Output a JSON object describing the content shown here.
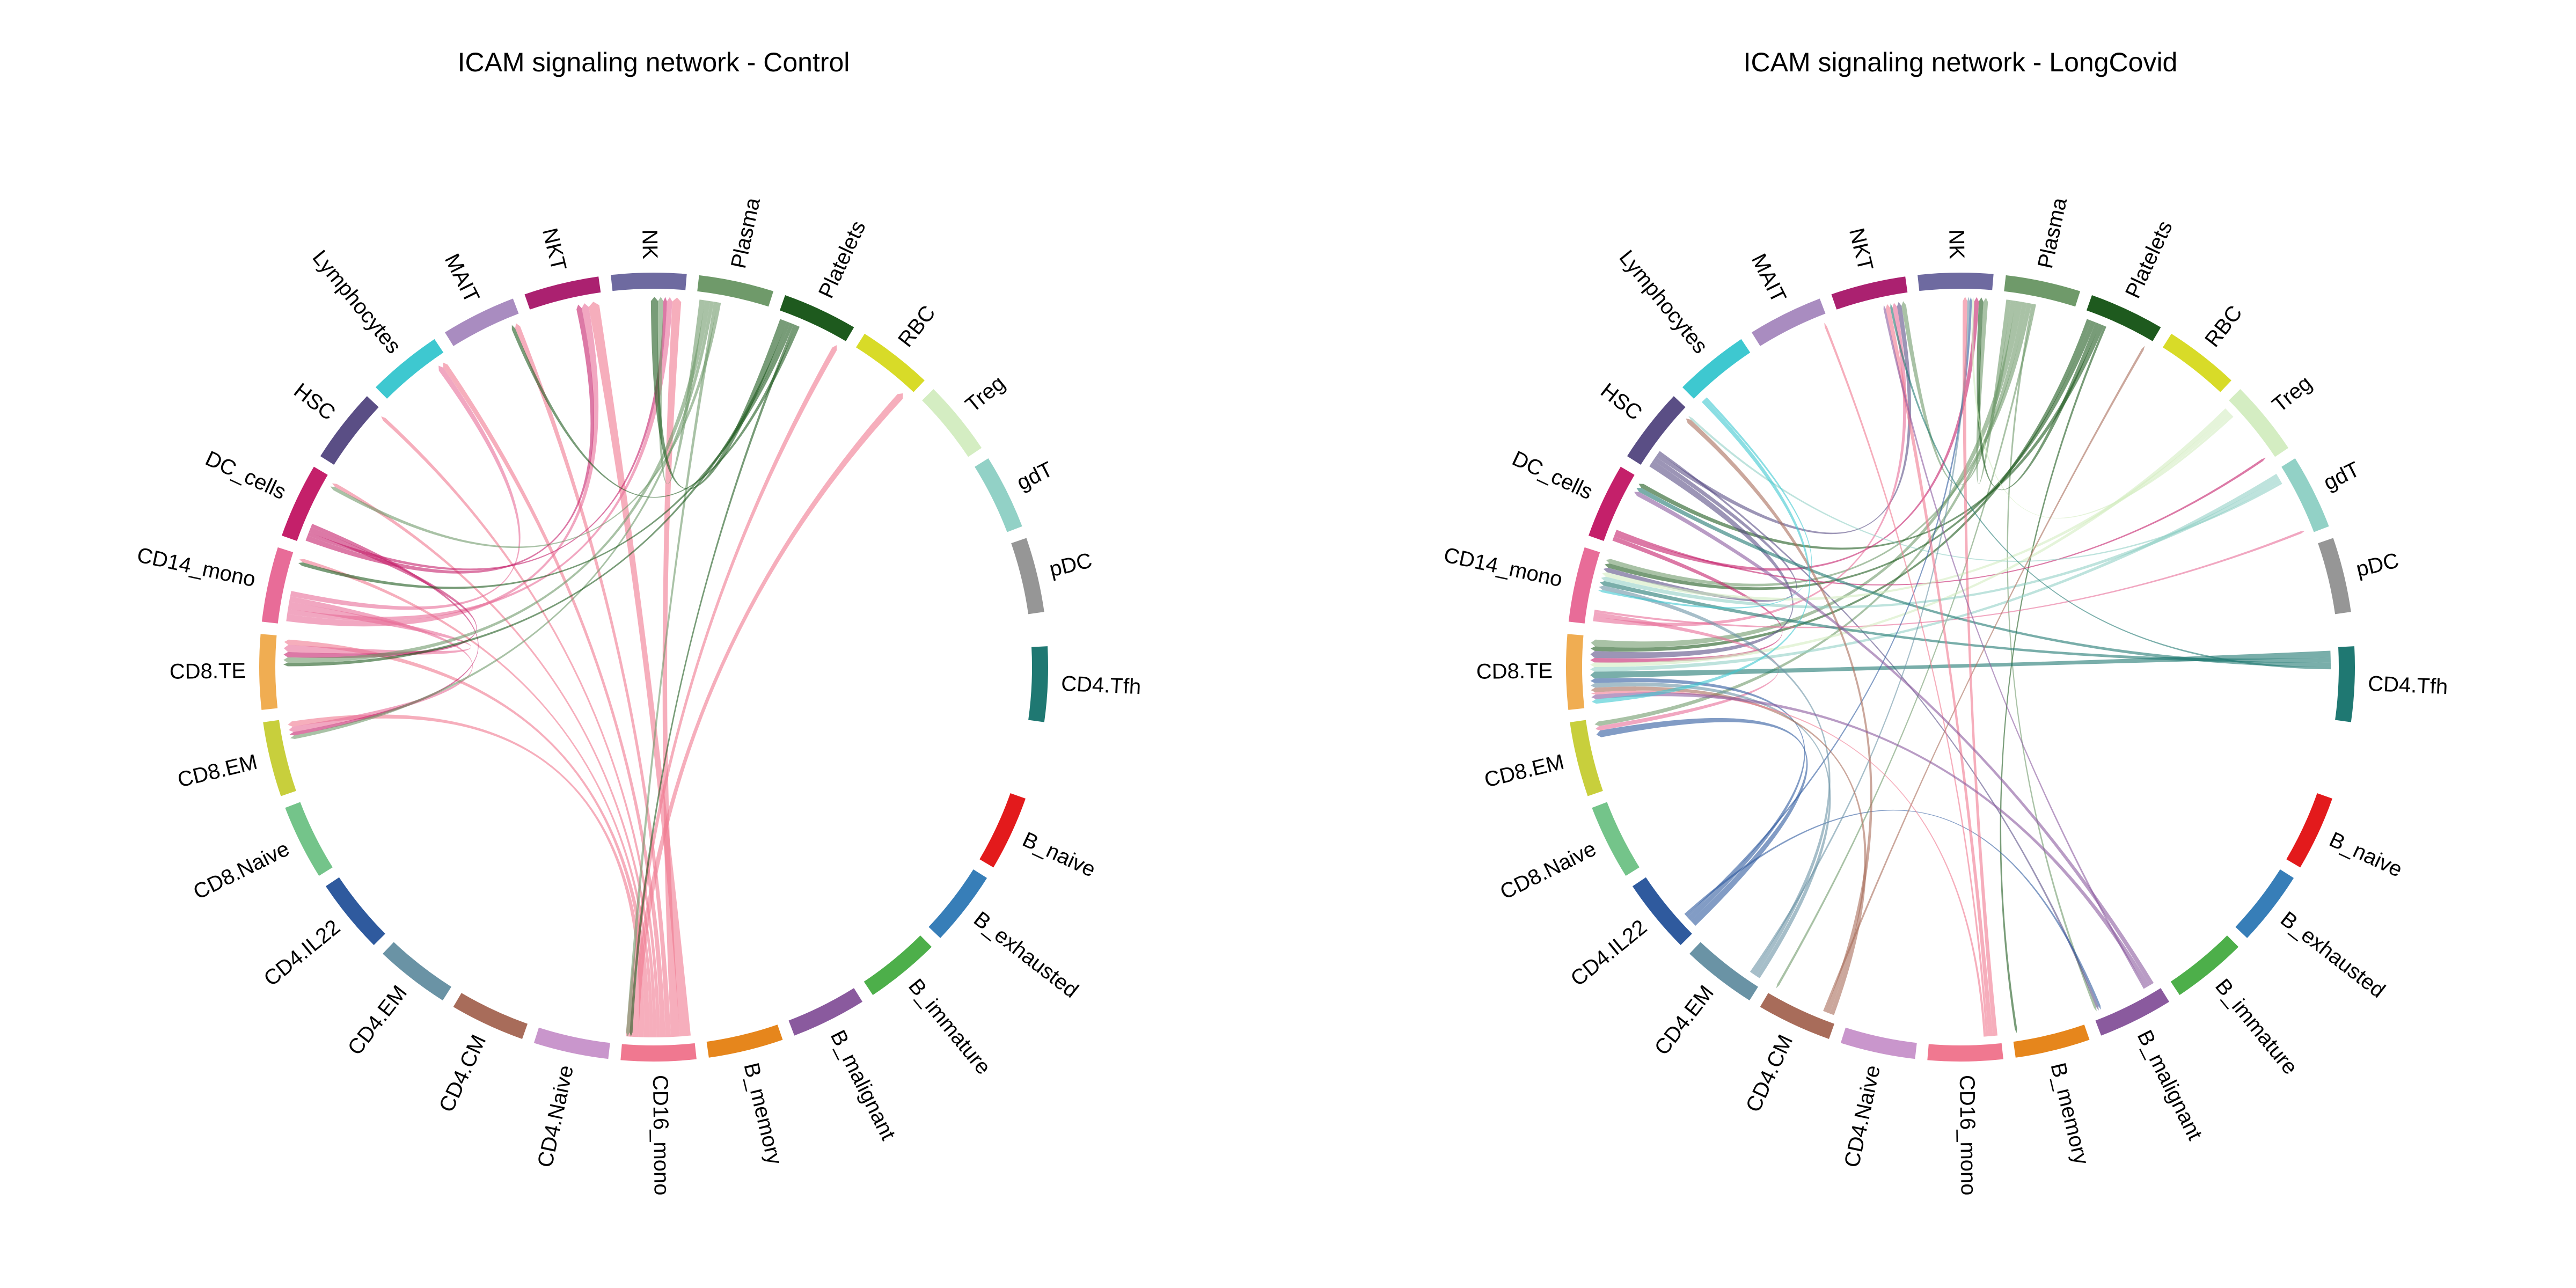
{
  "chart_data": [
    {
      "type": "chord",
      "title": "ICAM signaling network - Control",
      "sectors": [
        {
          "name": "CD4.Tfh",
          "color": "#1f7872"
        },
        {
          "name": "B_naive",
          "color": "#e31a1c"
        },
        {
          "name": "B_exhausted",
          "color": "#377eb8"
        },
        {
          "name": "B_immature",
          "color": "#4daf4a"
        },
        {
          "name": "B_malignant",
          "color": "#8a5a9e"
        },
        {
          "name": "B_memory",
          "color": "#e6861c"
        },
        {
          "name": "CD16_mono",
          "color": "#f07890"
        },
        {
          "name": "CD4.Naive",
          "color": "#c996cc"
        },
        {
          "name": "CD4.CM",
          "color": "#a86c5a"
        },
        {
          "name": "CD4.EM",
          "color": "#6a93a5"
        },
        {
          "name": "CD4.IL22",
          "color": "#2f5a9e"
        },
        {
          "name": "CD8.Naive",
          "color": "#74c48a"
        },
        {
          "name": "CD8.EM",
          "color": "#c8cf3c"
        },
        {
          "name": "CD8.TE",
          "color": "#f0ad52"
        },
        {
          "name": "CD14_mono",
          "color": "#e86c98"
        },
        {
          "name": "DC_cells",
          "color": "#c4206a"
        },
        {
          "name": "HSC",
          "color": "#5a4e85"
        },
        {
          "name": "Lymphocytes",
          "color": "#3ec8d0"
        },
        {
          "name": "MAIT",
          "color": "#a98cc0"
        },
        {
          "name": "NKT",
          "color": "#ab2170"
        },
        {
          "name": "NK",
          "color": "#6e6aa0"
        },
        {
          "name": "Plasma",
          "color": "#6f9a6a"
        },
        {
          "name": "Platelets",
          "color": "#1e5a1e"
        },
        {
          "name": "RBC",
          "color": "#d8db28"
        },
        {
          "name": "Treg",
          "color": "#d4edc2"
        },
        {
          "name": "gdT",
          "color": "#92d1c6"
        },
        {
          "name": "pDC",
          "color": "#969696"
        }
      ],
      "links": [
        {
          "from": "CD16_mono",
          "to": "NKT",
          "value": 3
        },
        {
          "from": "CD16_mono",
          "to": "NK",
          "value": 2.5
        },
        {
          "from": "CD16_mono",
          "to": "MAIT",
          "value": 1.5
        },
        {
          "from": "CD16_mono",
          "to": "Lymphocytes",
          "value": 1.5
        },
        {
          "from": "CD16_mono",
          "to": "HSC",
          "value": 1
        },
        {
          "from": "CD16_mono",
          "to": "DC_cells",
          "value": 1
        },
        {
          "from": "CD16_mono",
          "to": "CD14_mono",
          "value": 1
        },
        {
          "from": "CD16_mono",
          "to": "CD8.TE",
          "value": 1.5
        },
        {
          "from": "CD16_mono",
          "to": "CD8.EM",
          "value": 1.5
        },
        {
          "from": "CD16_mono",
          "to": "RBC",
          "value": 2
        },
        {
          "from": "CD16_mono",
          "to": "Platelets",
          "value": 1.5
        },
        {
          "from": "CD14_mono",
          "to": "NKT",
          "value": 2
        },
        {
          "from": "CD14_mono",
          "to": "NK",
          "value": 1.5
        },
        {
          "from": "CD14_mono",
          "to": "CD8.TE",
          "value": 2
        },
        {
          "from": "CD14_mono",
          "to": "CD8.EM",
          "value": 1.5
        },
        {
          "from": "CD14_mono",
          "to": "Lymphocytes",
          "value": 1.5
        },
        {
          "from": "DC_cells",
          "to": "NKT",
          "value": 1.5
        },
        {
          "from": "DC_cells",
          "to": "NK",
          "value": 1
        },
        {
          "from": "DC_cells",
          "to": "CD8.TE",
          "value": 1.5
        },
        {
          "from": "DC_cells",
          "to": "CD8.EM",
          "value": 1
        },
        {
          "from": "Plasma",
          "to": "NK",
          "value": 1.5
        },
        {
          "from": "Plasma",
          "to": "CD8.TE",
          "value": 1.5
        },
        {
          "from": "Plasma",
          "to": "CD8.EM",
          "value": 1
        },
        {
          "from": "Plasma",
          "to": "CD16_mono",
          "value": 1
        },
        {
          "from": "Plasma",
          "to": "DC_cells",
          "value": 1
        },
        {
          "from": "Platelets",
          "to": "NK",
          "value": 2
        },
        {
          "from": "Platelets",
          "to": "CD8.TE",
          "value": 1
        },
        {
          "from": "Platelets",
          "to": "CD14_mono",
          "value": 1
        },
        {
          "from": "Platelets",
          "to": "CD16_mono",
          "value": 0.8
        },
        {
          "from": "Platelets",
          "to": "MAIT",
          "value": 1
        }
      ]
    },
    {
      "type": "chord",
      "title": "ICAM signaling network - LongCovid",
      "sectors": [
        {
          "name": "CD4.Tfh",
          "color": "#1f7872"
        },
        {
          "name": "B_naive",
          "color": "#e31a1c"
        },
        {
          "name": "B_exhausted",
          "color": "#377eb8"
        },
        {
          "name": "B_immature",
          "color": "#4daf4a"
        },
        {
          "name": "B_malignant",
          "color": "#8a5a9e"
        },
        {
          "name": "B_memory",
          "color": "#e6861c"
        },
        {
          "name": "CD16_mono",
          "color": "#f07890"
        },
        {
          "name": "CD4.Naive",
          "color": "#c996cc"
        },
        {
          "name": "CD4.CM",
          "color": "#a86c5a"
        },
        {
          "name": "CD4.EM",
          "color": "#6a93a5"
        },
        {
          "name": "CD4.IL22",
          "color": "#2f5a9e"
        },
        {
          "name": "CD8.Naive",
          "color": "#74c48a"
        },
        {
          "name": "CD8.EM",
          "color": "#c8cf3c"
        },
        {
          "name": "CD8.TE",
          "color": "#f0ad52"
        },
        {
          "name": "CD14_mono",
          "color": "#e86c98"
        },
        {
          "name": "DC_cells",
          "color": "#c4206a"
        },
        {
          "name": "HSC",
          "color": "#5a4e85"
        },
        {
          "name": "Lymphocytes",
          "color": "#3ec8d0"
        },
        {
          "name": "MAIT",
          "color": "#a98cc0"
        },
        {
          "name": "NKT",
          "color": "#ab2170"
        },
        {
          "name": "NK",
          "color": "#6e6aa0"
        },
        {
          "name": "Plasma",
          "color": "#6f9a6a"
        },
        {
          "name": "Platelets",
          "color": "#1e5a1e"
        },
        {
          "name": "RBC",
          "color": "#d8db28"
        },
        {
          "name": "Treg",
          "color": "#d4edc2"
        },
        {
          "name": "gdT",
          "color": "#92d1c6"
        },
        {
          "name": "pDC",
          "color": "#969696"
        }
      ],
      "links": [
        {
          "from": "Plasma",
          "to": "NK",
          "value": 1
        },
        {
          "from": "Plasma",
          "to": "NKT",
          "value": 1
        },
        {
          "from": "Plasma",
          "to": "CD8.TE",
          "value": 1.5
        },
        {
          "from": "Plasma",
          "to": "CD8.EM",
          "value": 1
        },
        {
          "from": "Plasma",
          "to": "CD14_mono",
          "value": 1
        },
        {
          "from": "Plasma",
          "to": "B_malignant",
          "value": 0.5
        },
        {
          "from": "Plasma",
          "to": "CD4.CM",
          "value": 0.5
        },
        {
          "from": "Platelets",
          "to": "CD8.TE",
          "value": 1
        },
        {
          "from": "Platelets",
          "to": "CD14_mono",
          "value": 1
        },
        {
          "from": "Platelets",
          "to": "NK",
          "value": 1
        },
        {
          "from": "Platelets",
          "to": "DC_cells",
          "value": 1
        },
        {
          "from": "Platelets",
          "to": "B_memory",
          "value": 0.5
        },
        {
          "from": "HSC",
          "to": "CD8.TE",
          "value": 1.5
        },
        {
          "from": "HSC",
          "to": "CD14_mono",
          "value": 1
        },
        {
          "from": "HSC",
          "to": "NKT",
          "value": 1
        },
        {
          "from": "HSC",
          "to": "B_malignant",
          "value": 0.5
        },
        {
          "from": "DC_cells",
          "to": "CD8.TE",
          "value": 1
        },
        {
          "from": "DC_cells",
          "to": "NK",
          "value": 1
        },
        {
          "from": "DC_cells",
          "to": "Treg",
          "value": 0.5
        },
        {
          "from": "CD14_mono",
          "to": "NKT",
          "value": 1
        },
        {
          "from": "CD14_mono",
          "to": "CD8.EM",
          "value": 1
        },
        {
          "from": "CD14_mono",
          "to": "gdT",
          "value": 0.5
        },
        {
          "from": "Treg",
          "to": "CD8.TE",
          "value": 1
        },
        {
          "from": "Treg",
          "to": "CD14_mono",
          "value": 1
        },
        {
          "from": "Treg",
          "to": "NK",
          "value": 0.5
        },
        {
          "from": "gdT",
          "to": "CD8.TE",
          "value": 1
        },
        {
          "from": "gdT",
          "to": "CD14_mono",
          "value": 1
        },
        {
          "from": "gdT",
          "to": "HSC",
          "value": 0.5
        },
        {
          "from": "CD4.Tfh",
          "to": "CD8.TE",
          "value": 1.5
        },
        {
          "from": "CD4.Tfh",
          "to": "CD14_mono",
          "value": 1
        },
        {
          "from": "CD4.Tfh",
          "to": "DC_cells",
          "value": 1
        },
        {
          "from": "CD4.Tfh",
          "to": "NKT",
          "value": 0.5
        },
        {
          "from": "CD4.IL22",
          "to": "CD8.EM",
          "value": 1.5
        },
        {
          "from": "CD4.IL22",
          "to": "CD8.TE",
          "value": 1
        },
        {
          "from": "CD4.IL22",
          "to": "NK",
          "value": 0.5
        },
        {
          "from": "CD4.IL22",
          "to": "B_malignant",
          "value": 0.5
        },
        {
          "from": "CD4.EM",
          "to": "CD8.TE",
          "value": 1
        },
        {
          "from": "CD4.EM",
          "to": "CD14_mono",
          "value": 1
        },
        {
          "from": "CD4.EM",
          "to": "NK",
          "value": 0.5
        },
        {
          "from": "CD4.CM",
          "to": "CD8.TE",
          "value": 1
        },
        {
          "from": "CD4.CM",
          "to": "HSC",
          "value": 1
        },
        {
          "from": "CD4.CM",
          "to": "Platelets",
          "value": 0.5
        },
        {
          "from": "CD16_mono",
          "to": "NK",
          "value": 1
        },
        {
          "from": "CD16_mono",
          "to": "NKT",
          "value": 1
        },
        {
          "from": "CD16_mono",
          "to": "MAIT",
          "value": 0.5
        },
        {
          "from": "CD16_mono",
          "to": "CD8.TE",
          "value": 0.5
        },
        {
          "from": "B_malignant",
          "to": "DC_cells",
          "value": 1
        },
        {
          "from": "B_malignant",
          "to": "CD8.TE",
          "value": 1
        },
        {
          "from": "B_malignant",
          "to": "NKT",
          "value": 0.5
        },
        {
          "from": "Lymphocytes",
          "to": "CD8.TE",
          "value": 1
        },
        {
          "from": "Lymphocytes",
          "to": "CD14_mono",
          "value": 0.5
        }
      ]
    }
  ]
}
